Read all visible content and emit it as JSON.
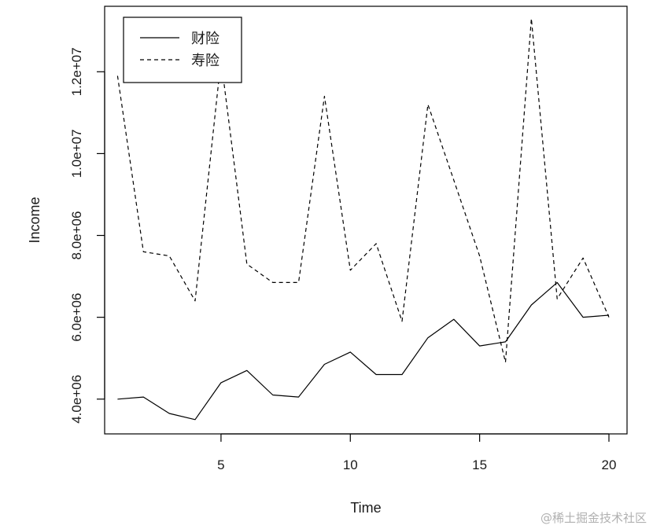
{
  "chart_data": {
    "type": "line",
    "title": "",
    "xlabel": "Time",
    "ylabel": "Income",
    "xlim": [
      0.5,
      20.7
    ],
    "ylim": [
      3150000,
      13600000
    ],
    "x_ticks": [
      5,
      10,
      15,
      20
    ],
    "x_tick_labels": [
      "5",
      "10",
      "15",
      "20"
    ],
    "y_ticks": [
      4000000,
      6000000,
      8000000,
      10000000,
      12000000
    ],
    "y_tick_labels": [
      "4.0e+06",
      "6.0e+06",
      "8.0e+06",
      "1.0e+07",
      "1.2e+07"
    ],
    "grid": false,
    "legend_position": "top-left",
    "x": [
      1,
      2,
      3,
      4,
      5,
      6,
      7,
      8,
      9,
      10,
      11,
      12,
      13,
      14,
      15,
      16,
      17,
      18,
      19,
      20
    ],
    "series": [
      {
        "name": "财险",
        "line_style": "solid",
        "color": "#000000",
        "values": [
          4000000,
          4050000,
          3650000,
          3500000,
          4400000,
          4700000,
          4100000,
          4050000,
          4850000,
          5150000,
          4600000,
          4600000,
          5500000,
          5950000,
          5300000,
          5400000,
          6300000,
          6850000,
          6000000,
          6050000
        ]
      },
      {
        "name": "寿险",
        "line_style": "dashed",
        "color": "#000000",
        "values": [
          11900000,
          7600000,
          7500000,
          6400000,
          12300000,
          7300000,
          6850000,
          6850000,
          11400000,
          7150000,
          7800000,
          5900000,
          11200000,
          9350000,
          7500000,
          4900000,
          13300000,
          6450000,
          7450000,
          6000000
        ]
      }
    ]
  },
  "watermark": "@稀土掘金技术社区"
}
